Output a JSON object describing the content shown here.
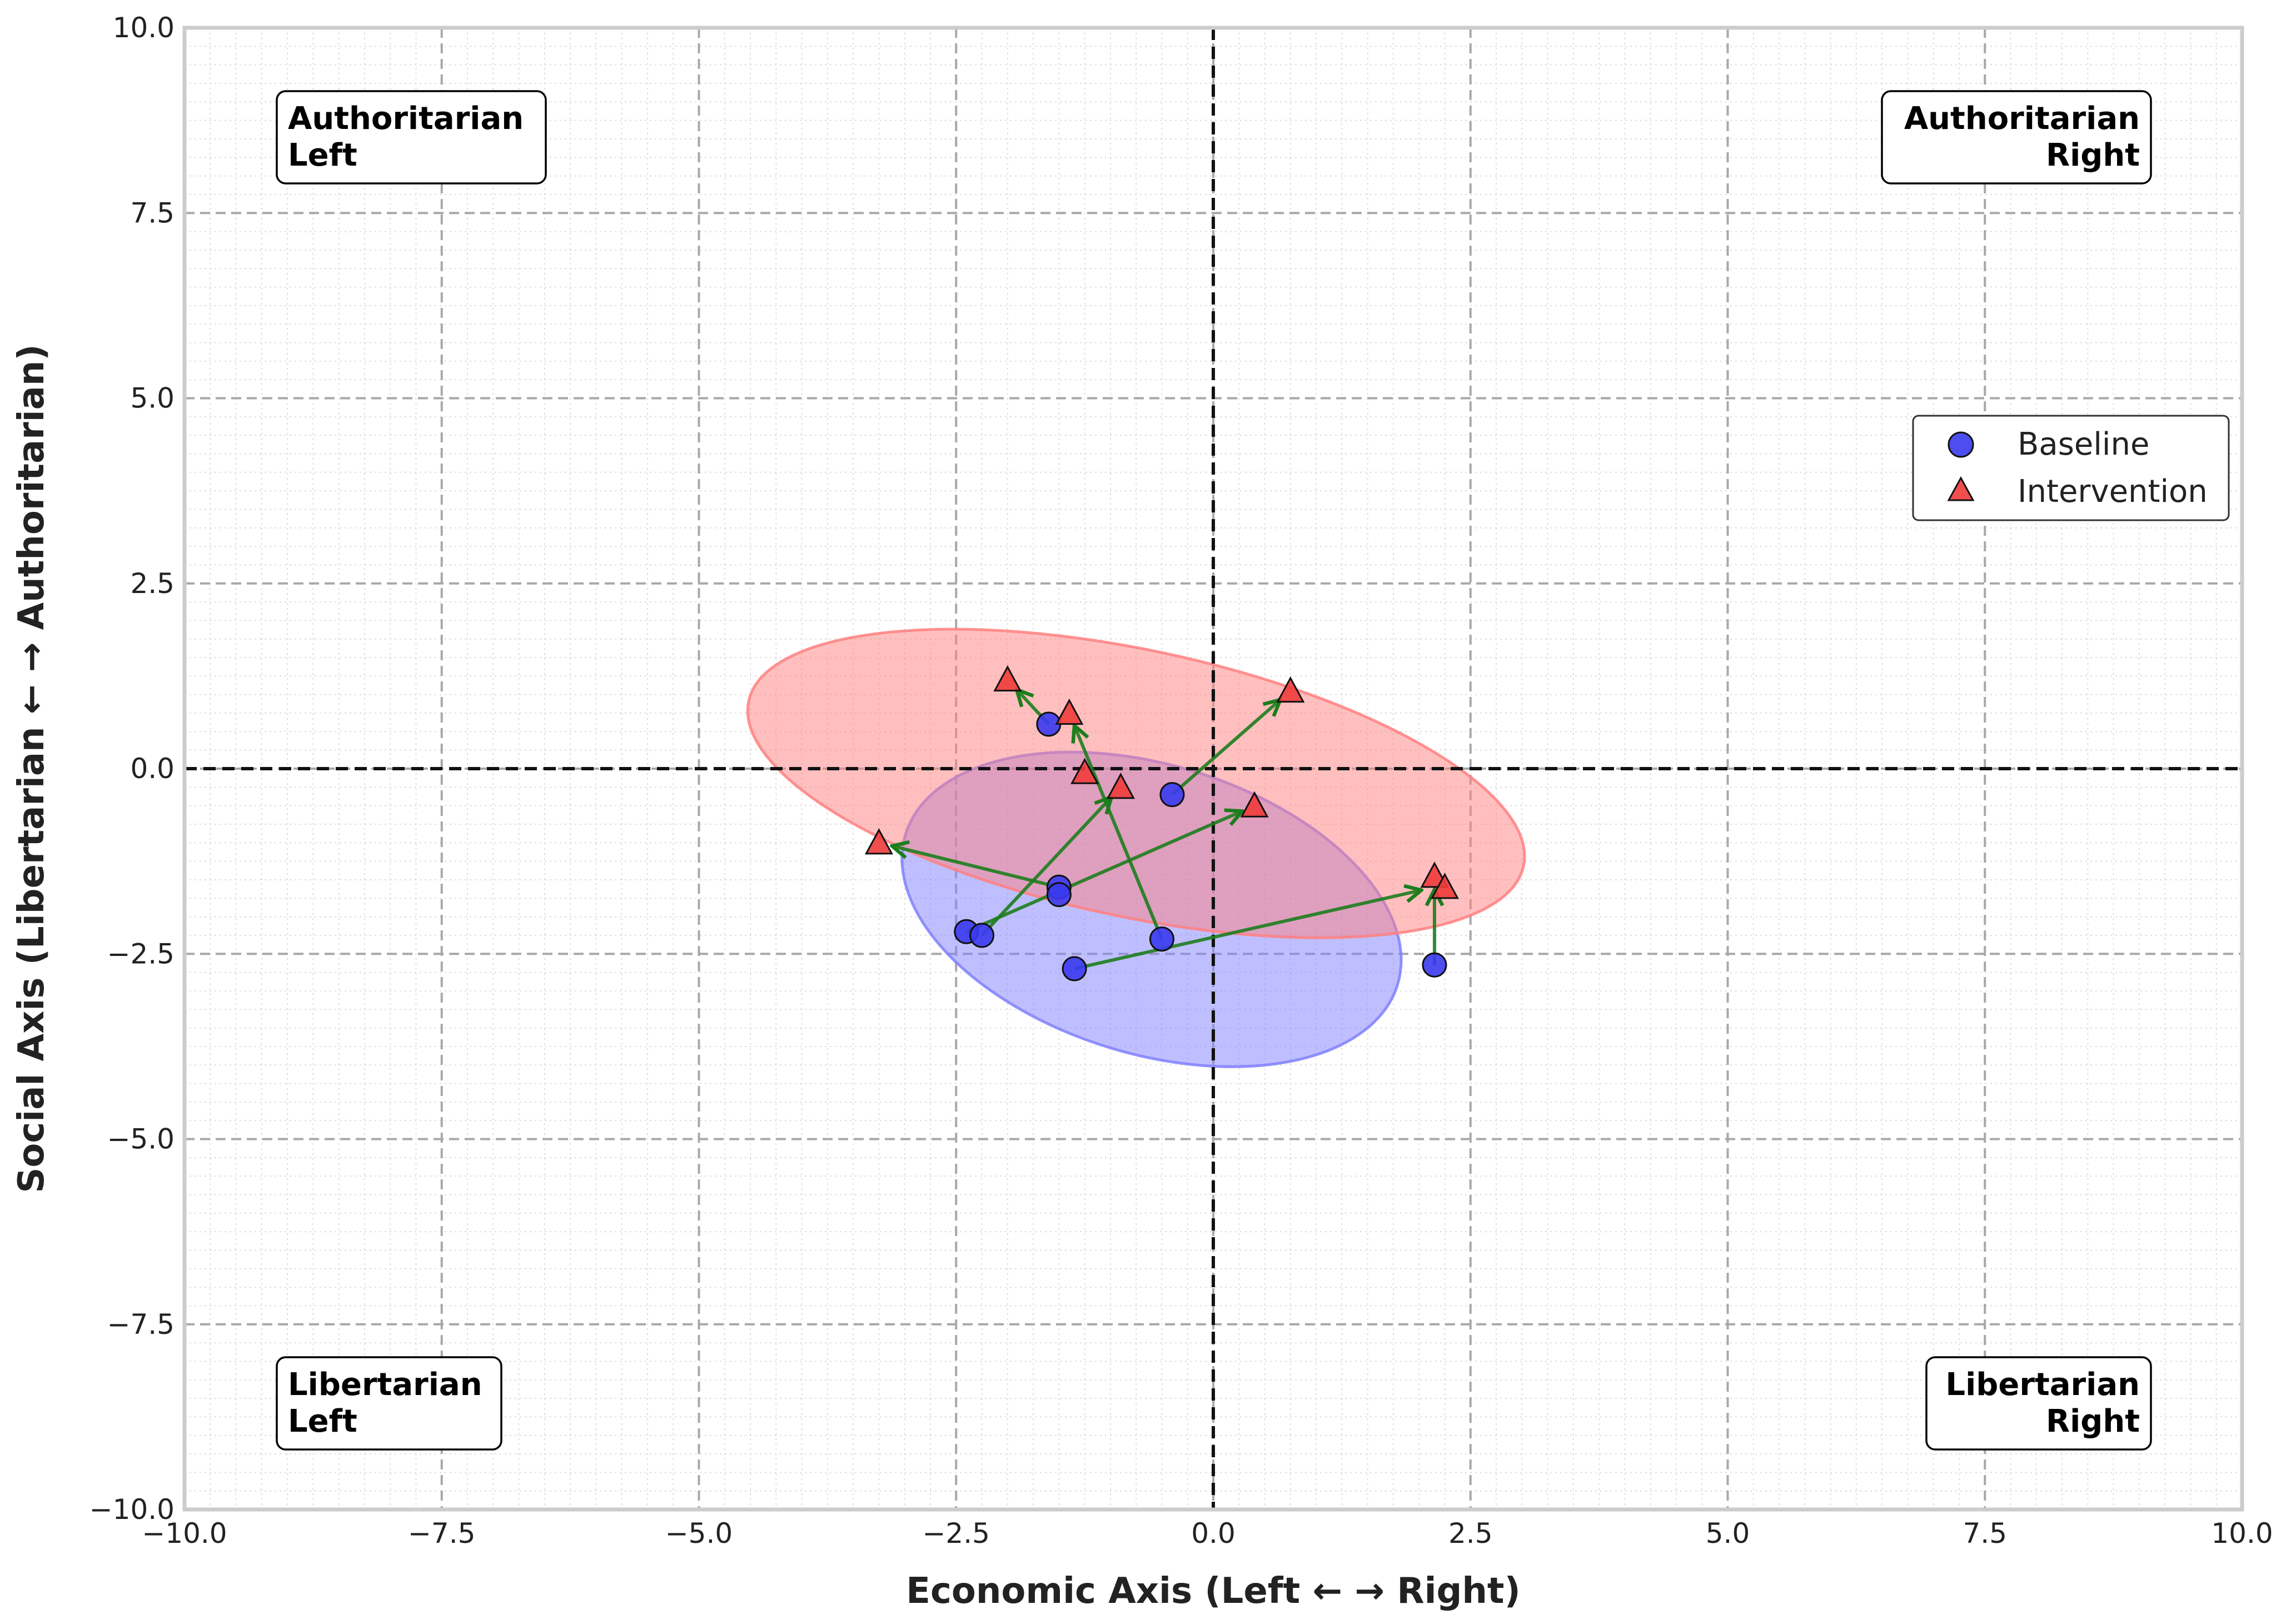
{
  "chart_data": {
    "type": "scatter",
    "xlabel": "Economic Axis (Left ← → Right)",
    "ylabel": "Social Axis (Libertarian ← → Authoritarian)",
    "xlim": [
      -10,
      10
    ],
    "ylim": [
      -10,
      10
    ],
    "xticks": [
      -10,
      -7.5,
      -5,
      -2.5,
      0,
      2.5,
      5,
      7.5,
      10
    ],
    "yticks": [
      -10,
      -7.5,
      -5,
      -2.5,
      0,
      2.5,
      5,
      7.5,
      10
    ],
    "x_tick_labels": [
      "−10.0",
      "−7.5",
      "−5.0",
      "−2.5",
      "0.0",
      "2.5",
      "5.0",
      "7.5",
      "10.0"
    ],
    "y_tick_labels": [
      "−10.0",
      "−7.5",
      "−5.0",
      "−2.5",
      "0.0",
      "2.5",
      "5.0",
      "7.5",
      "10.0"
    ],
    "grid": true,
    "quadrant_labels": [
      {
        "lines": [
          "Authoritarian",
          "Left"
        ],
        "position": "top-left"
      },
      {
        "lines": [
          "Authoritarian",
          "Right"
        ],
        "position": "top-right"
      },
      {
        "lines": [
          "Libertarian",
          "Left"
        ],
        "position": "bottom-left"
      },
      {
        "lines": [
          "Libertarian",
          "Right"
        ],
        "position": "bottom-right"
      }
    ],
    "legend": {
      "position": "right",
      "entries": [
        {
          "label": "Baseline",
          "marker": "circle",
          "color": "#3a3aef"
        },
        {
          "label": "Intervention",
          "marker": "triangle",
          "color": "#f03b3b"
        }
      ]
    },
    "series": [
      {
        "name": "Baseline",
        "marker": "circle",
        "color": "#3a3aef",
        "points": [
          {
            "x": -1.6,
            "y": 0.6
          },
          {
            "x": -0.4,
            "y": -0.35
          },
          {
            "x": -1.5,
            "y": -1.6
          },
          {
            "x": -1.5,
            "y": -1.7
          },
          {
            "x": -2.4,
            "y": -2.2
          },
          {
            "x": -2.25,
            "y": -2.25
          },
          {
            "x": -0.5,
            "y": -2.3
          },
          {
            "x": -1.35,
            "y": -2.7
          },
          {
            "x": 2.15,
            "y": -2.65
          }
        ]
      },
      {
        "name": "Intervention",
        "marker": "triangle",
        "color": "#f03b3b",
        "points": [
          {
            "x": -2.0,
            "y": 1.2
          },
          {
            "x": 0.75,
            "y": 1.05
          },
          {
            "x": -1.4,
            "y": 0.75
          },
          {
            "x": -1.25,
            "y": -0.05
          },
          {
            "x": -0.9,
            "y": -0.25
          },
          {
            "x": 0.4,
            "y": -0.5
          },
          {
            "x": -3.25,
            "y": -1.0
          },
          {
            "x": 2.15,
            "y": -1.45
          },
          {
            "x": 2.25,
            "y": -1.6
          }
        ]
      }
    ],
    "shifts": [
      {
        "from": [
          -1.6,
          0.6
        ],
        "to": [
          -2.0,
          1.2
        ]
      },
      {
        "from": [
          -0.4,
          -0.35
        ],
        "to": [
          0.75,
          1.05
        ]
      },
      {
        "from": [
          -1.5,
          -1.6
        ],
        "to": [
          -3.25,
          -1.0
        ]
      },
      {
        "from": [
          -2.4,
          -2.2
        ],
        "to": [
          0.4,
          -0.5
        ]
      },
      {
        "from": [
          -2.25,
          -2.25
        ],
        "to": [
          -0.9,
          -0.25
        ]
      },
      {
        "from": [
          -0.5,
          -2.3
        ],
        "to": [
          -1.4,
          0.75
        ]
      },
      {
        "from": [
          -1.35,
          -2.7
        ],
        "to": [
          2.15,
          -1.6
        ]
      },
      {
        "from": [
          2.15,
          -2.65
        ],
        "to": [
          2.15,
          -1.45
        ]
      }
    ],
    "confidence_ellipses": [
      {
        "series": "Baseline",
        "color": "#8080ff",
        "center": [
          -0.6,
          -1.9
        ],
        "width": 5.0,
        "height": 3.9,
        "angle": -17
      },
      {
        "series": "Intervention",
        "color": "#ff8080",
        "center": [
          -0.75,
          -0.2
        ],
        "width": 7.7,
        "height": 3.6,
        "angle": -12
      }
    ],
    "colors": {
      "arrow": "#1d7d1d",
      "reference_line": "#111111",
      "major_grid": "#a8a8a8",
      "minor_grid": "#dddddd",
      "frame": "#cccccc"
    }
  }
}
